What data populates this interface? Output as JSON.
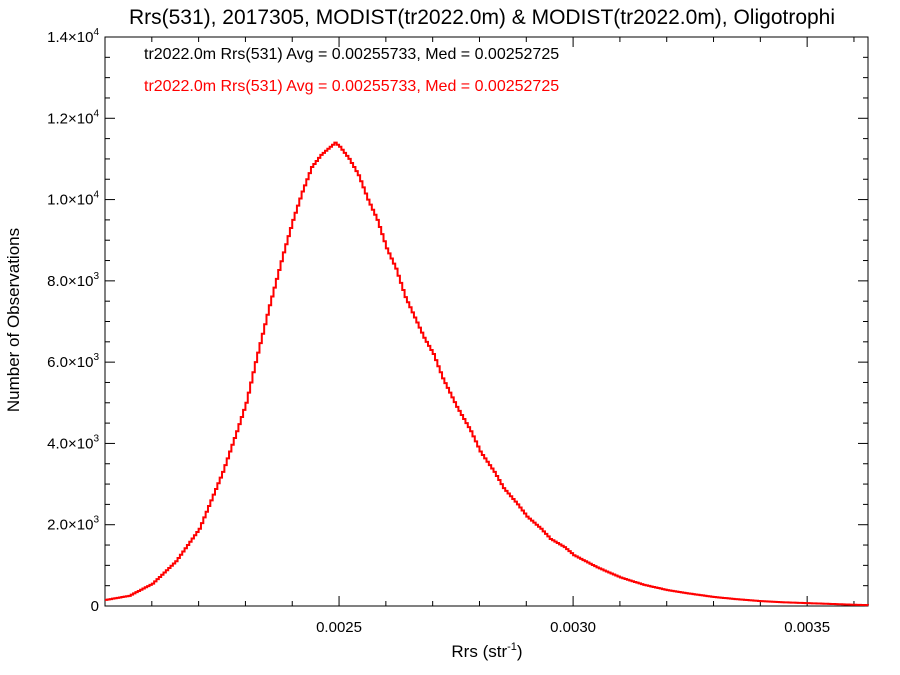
{
  "chart_data": {
    "type": "histogram",
    "title": "Rrs(531), 2017305, MODIST(tr2022.0m) & MODIST(tr2022.0m), Oligotrophi",
    "xlabel": {
      "base": "Rrs (str",
      "sup": "-1",
      "close": ")"
    },
    "ylabel": "Number of Observations",
    "xlim": [
      0.002,
      0.00363
    ],
    "ylim": [
      0,
      14000
    ],
    "grid": false,
    "x_ticks": [
      {
        "value": 0.0025,
        "label": "0.0025"
      },
      {
        "value": 0.003,
        "label": "0.0030"
      },
      {
        "value": 0.0035,
        "label": "0.0035"
      }
    ],
    "y_ticks": [
      {
        "value": 0,
        "mant": "0",
        "exp": ""
      },
      {
        "value": 2000,
        "mant": "2.0×10",
        "exp": "3"
      },
      {
        "value": 4000,
        "mant": "4.0×10",
        "exp": "3"
      },
      {
        "value": 6000,
        "mant": "6.0×10",
        "exp": "3"
      },
      {
        "value": 8000,
        "mant": "8.0×10",
        "exp": "3"
      },
      {
        "value": 10000,
        "mant": "1.0×10",
        "exp": "4"
      },
      {
        "value": 12000,
        "mant": "1.2×10",
        "exp": "4"
      },
      {
        "value": 14000,
        "mant": "1.4×10",
        "exp": "4"
      }
    ],
    "legend": [
      {
        "text": "tr2022.0m Rrs(531) Avg = 0.00255733, Med = 0.00252725",
        "color": "#000000"
      },
      {
        "text": "tr2022.0m Rrs(531) Avg = 0.00255733, Med = 0.00252725",
        "color": "#ff0000"
      }
    ],
    "series": [
      {
        "color": "#ff0000",
        "step": true,
        "x": [
          0.002,
          0.00205,
          0.0021,
          0.00215,
          0.0022,
          0.00225,
          0.00228,
          0.0023,
          0.00232,
          0.00235,
          0.00238,
          0.0024,
          0.00242,
          0.00244,
          0.00246,
          0.00248,
          0.00249,
          0.0025,
          0.00252,
          0.00254,
          0.00256,
          0.00258,
          0.0026,
          0.00262,
          0.00264,
          0.00266,
          0.00268,
          0.0027,
          0.00272,
          0.00275,
          0.00278,
          0.0028,
          0.00283,
          0.00285,
          0.00288,
          0.0029,
          0.00293,
          0.00295,
          0.00298,
          0.003,
          0.00305,
          0.0031,
          0.00315,
          0.0032,
          0.00325,
          0.0033,
          0.00335,
          0.0034,
          0.00345,
          0.0035,
          0.00355,
          0.0036,
          0.00363
        ],
        "values": [
          150,
          250,
          550,
          1100,
          1900,
          3300,
          4300,
          5000,
          6000,
          7400,
          8700,
          9500,
          10200,
          10800,
          11100,
          11300,
          11400,
          11300,
          11000,
          10600,
          10000,
          9500,
          8800,
          8300,
          7600,
          7100,
          6600,
          6200,
          5600,
          4900,
          4300,
          3800,
          3300,
          2900,
          2500,
          2200,
          1900,
          1650,
          1450,
          1250,
          950,
          700,
          520,
          390,
          300,
          220,
          165,
          120,
          90,
          70,
          50,
          30,
          20
        ]
      }
    ]
  }
}
